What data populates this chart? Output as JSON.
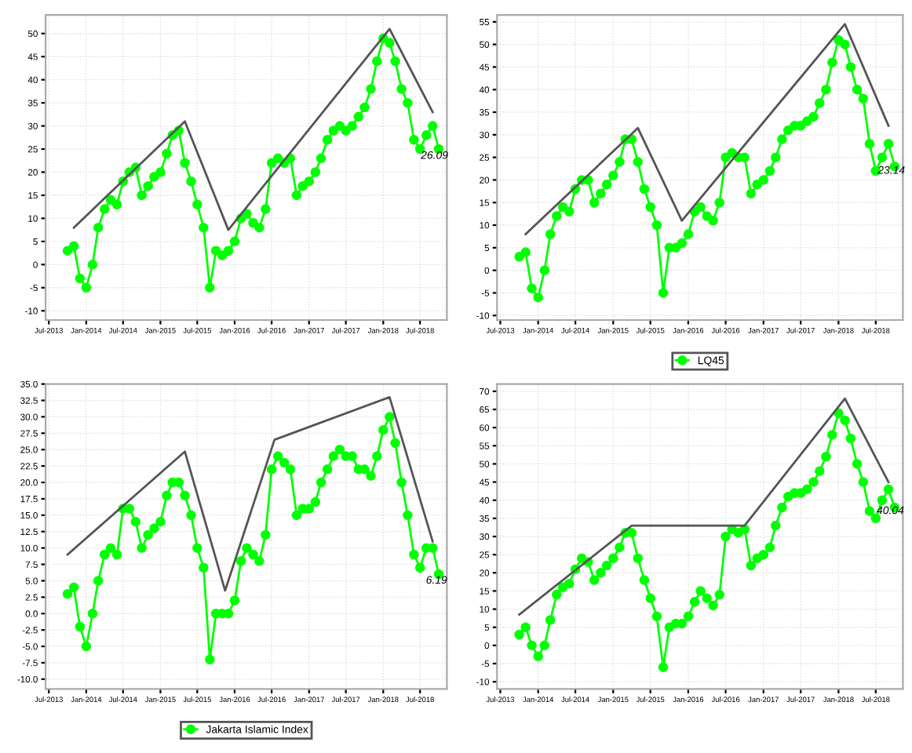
{
  "chart_data": [
    {
      "type": "line",
      "marker": "circle",
      "grid": true,
      "legend": false,
      "xlim": [
        "2013-06-15",
        "2018-11-10"
      ],
      "ylim": [
        -12,
        54
      ],
      "xticks": [
        {
          "value": "2013-07-01",
          "label": "Jul-2013"
        },
        {
          "value": "2014-01-01",
          "label": "Jan-2014"
        },
        {
          "value": "2014-07-01",
          "label": "Jul-2014"
        },
        {
          "value": "2015-01-01",
          "label": "Jan-2015"
        },
        {
          "value": "2015-07-01",
          "label": "Jul-2015"
        },
        {
          "value": "2016-01-01",
          "label": "Jan-2016"
        },
        {
          "value": "2016-07-01",
          "label": "Jul-2016"
        },
        {
          "value": "2017-01-01",
          "label": "Jan-2017"
        },
        {
          "value": "2017-07-01",
          "label": "Jul-2017"
        },
        {
          "value": "2018-01-01",
          "label": "Jan-2018"
        },
        {
          "value": "2018-07-01",
          "label": "Jul-2018"
        }
      ],
      "yticks": [
        -10,
        -5,
        0,
        5,
        10,
        15,
        20,
        25,
        30,
        35,
        40,
        45,
        50
      ],
      "annotations": [
        {
          "text": "26.09",
          "x": "2018-09-10",
          "y": 23.5
        }
      ],
      "series": [
        {
          "color": "#00ff00",
          "x": [
            "2013-10",
            "2013-11",
            "2013-12",
            "2014-01",
            "2014-02",
            "2014-03",
            "2014-04",
            "2014-05",
            "2014-06",
            "2014-07",
            "2014-08",
            "2014-09",
            "2014-10",
            "2014-11",
            "2014-12",
            "2015-01",
            "2015-02",
            "2015-03",
            "2015-04",
            "2015-05",
            "2015-06",
            "2015-07",
            "2015-08",
            "2015-09",
            "2015-10",
            "2015-11",
            "2015-12",
            "2016-01",
            "2016-02",
            "2016-03",
            "2016-04",
            "2016-05",
            "2016-06",
            "2016-07",
            "2016-08",
            "2016-09",
            "2016-10",
            "2016-11",
            "2016-12",
            "2017-01",
            "2017-02",
            "2017-03",
            "2017-04",
            "2017-05",
            "2017-06",
            "2017-07",
            "2017-08",
            "2017-09",
            "2017-10",
            "2017-11",
            "2017-12",
            "2018-01",
            "2018-02",
            "2018-03",
            "2018-04",
            "2018-05",
            "2018-06",
            "2018-07",
            "2018-08",
            "2018-09",
            "2018-10"
          ],
          "values": [
            3,
            4,
            -3,
            -5,
            0,
            8,
            12,
            14,
            13,
            18,
            20,
            21,
            15,
            17,
            19,
            20,
            24,
            28,
            29,
            22,
            18,
            13,
            8,
            -5,
            3,
            2,
            3,
            5,
            10,
            11,
            9,
            8,
            12,
            22,
            23,
            22,
            23,
            15,
            17,
            18,
            20,
            23,
            27,
            29,
            30,
            29,
            30,
            32,
            34,
            38,
            44,
            49,
            48,
            44,
            38,
            35,
            27,
            25,
            28,
            30,
            25
          ]
        },
        {
          "color": "#555555",
          "type": "line",
          "marker": "none",
          "x": [
            "2013-11-01",
            "2015-05-01",
            "2015-12-01",
            "2018-02-01",
            "2018-09-01"
          ],
          "values": [
            8,
            31,
            7.5,
            51,
            33
          ]
        }
      ]
    },
    {
      "type": "line",
      "marker": "circle",
      "grid": true,
      "legend": "bottom",
      "xlim": [
        "2013-06-15",
        "2018-11-10"
      ],
      "ylim": [
        -11,
        56.5
      ],
      "xticks": [
        {
          "value": "2013-07-01",
          "label": "Jul-2013"
        },
        {
          "value": "2014-01-01",
          "label": "Jan-2014"
        },
        {
          "value": "2014-07-01",
          "label": "Jul-2014"
        },
        {
          "value": "2015-01-01",
          "label": "Jan-2015"
        },
        {
          "value": "2015-07-01",
          "label": "Jul-2015"
        },
        {
          "value": "2016-01-01",
          "label": "Jan-2016"
        },
        {
          "value": "2016-07-01",
          "label": "Jul-2016"
        },
        {
          "value": "2017-01-01",
          "label": "Jan-2017"
        },
        {
          "value": "2017-07-01",
          "label": "Jul-2017"
        },
        {
          "value": "2018-01-01",
          "label": "Jan-2018"
        },
        {
          "value": "2018-07-01",
          "label": "Jul-2018"
        }
      ],
      "yticks": [
        -10,
        -5,
        0,
        5,
        10,
        15,
        20,
        25,
        30,
        35,
        40,
        45,
        50,
        55
      ],
      "annotations": [
        {
          "text": "23.14",
          "x": "2018-09-15",
          "y": 22
        }
      ],
      "series": [
        {
          "name": "LQ45",
          "color": "#00ff00",
          "x": [
            "2013-10",
            "2013-11",
            "2013-12",
            "2014-01",
            "2014-02",
            "2014-03",
            "2014-04",
            "2014-05",
            "2014-06",
            "2014-07",
            "2014-08",
            "2014-09",
            "2014-10",
            "2014-11",
            "2014-12",
            "2015-01",
            "2015-02",
            "2015-03",
            "2015-04",
            "2015-05",
            "2015-06",
            "2015-07",
            "2015-08",
            "2015-09",
            "2015-10",
            "2015-11",
            "2015-12",
            "2016-01",
            "2016-02",
            "2016-03",
            "2016-04",
            "2016-05",
            "2016-06",
            "2016-07",
            "2016-08",
            "2016-09",
            "2016-10",
            "2016-11",
            "2016-12",
            "2017-01",
            "2017-02",
            "2017-03",
            "2017-04",
            "2017-05",
            "2017-06",
            "2017-07",
            "2017-08",
            "2017-09",
            "2017-10",
            "2017-11",
            "2017-12",
            "2018-01",
            "2018-02",
            "2018-03",
            "2018-04",
            "2018-05",
            "2018-06",
            "2018-07",
            "2018-08",
            "2018-09",
            "2018-10"
          ],
          "values": [
            3,
            4,
            -4,
            -6,
            0,
            8,
            12,
            14,
            13,
            18,
            20,
            20,
            15,
            17,
            19,
            21,
            24,
            29,
            29,
            24,
            18,
            14,
            10,
            -5,
            5,
            5,
            6,
            8,
            13,
            14,
            12,
            11,
            15,
            25,
            26,
            25,
            25,
            17,
            19,
            20,
            22,
            25,
            29,
            31,
            32,
            32,
            33,
            34,
            37,
            40,
            46,
            51,
            50,
            45,
            40,
            38,
            28,
            22,
            25,
            28,
            23
          ]
        },
        {
          "color": "#555555",
          "type": "line",
          "marker": "none",
          "x": [
            "2013-11-01",
            "2015-05-01",
            "2015-12-01",
            "2018-02-01",
            "2018-09-01"
          ],
          "values": [
            8,
            31.5,
            11,
            54.5,
            32
          ]
        }
      ]
    },
    {
      "type": "line",
      "marker": "circle",
      "grid": true,
      "legend": "bottom",
      "xlim": [
        "2013-06-15",
        "2018-11-10"
      ],
      "ylim": [
        -11.5,
        35
      ],
      "xticks": [
        {
          "value": "2013-07-01",
          "label": "Jul-2013"
        },
        {
          "value": "2014-01-01",
          "label": "Jan-2014"
        },
        {
          "value": "2014-07-01",
          "label": "Jul-2014"
        },
        {
          "value": "2015-01-01",
          "label": "Jan-2015"
        },
        {
          "value": "2015-07-01",
          "label": "Jul-2015"
        },
        {
          "value": "2016-01-01",
          "label": "Jan-2016"
        },
        {
          "value": "2016-07-01",
          "label": "Jul-2016"
        },
        {
          "value": "2017-01-01",
          "label": "Jan-2017"
        },
        {
          "value": "2017-07-01",
          "label": "Jul-2017"
        },
        {
          "value": "2018-01-01",
          "label": "Jan-2018"
        },
        {
          "value": "2018-07-01",
          "label": "Jul-2018"
        }
      ],
      "yticks": [
        {
          "value": -10,
          "label": "-10.0"
        },
        {
          "value": -7.5,
          "label": "-7.5"
        },
        {
          "value": -5,
          "label": "-5.0"
        },
        {
          "value": -2.5,
          "label": "-2.5"
        },
        {
          "value": 0,
          "label": "0.0"
        },
        {
          "value": 2.5,
          "label": "2.5"
        },
        {
          "value": 5,
          "label": "5.0"
        },
        {
          "value": 7.5,
          "label": "7.5"
        },
        {
          "value": 10,
          "label": "10.0"
        },
        {
          "value": 12.5,
          "label": "12.5"
        },
        {
          "value": 15,
          "label": "15.0"
        },
        {
          "value": 17.5,
          "label": "17.5"
        },
        {
          "value": 20,
          "label": "20.0"
        },
        {
          "value": 22.5,
          "label": "22.5"
        },
        {
          "value": 25,
          "label": "25.0"
        },
        {
          "value": 27.5,
          "label": "27.5"
        },
        {
          "value": 30,
          "label": "30.0"
        },
        {
          "value": 32.5,
          "label": "32.5"
        },
        {
          "value": 35,
          "label": "35.0"
        }
      ],
      "annotations": [
        {
          "text": "6.19",
          "x": "2018-09-20",
          "y": 5
        }
      ],
      "series": [
        {
          "name": "Jakarta Islamic Index",
          "color": "#00ff00",
          "x": [
            "2013-10",
            "2013-11",
            "2013-12",
            "2014-01",
            "2014-02",
            "2014-03",
            "2014-04",
            "2014-05",
            "2014-06",
            "2014-07",
            "2014-08",
            "2014-09",
            "2014-10",
            "2014-11",
            "2014-12",
            "2015-01",
            "2015-02",
            "2015-03",
            "2015-04",
            "2015-05",
            "2015-06",
            "2015-07",
            "2015-08",
            "2015-09",
            "2015-10",
            "2015-11",
            "2015-12",
            "2016-01",
            "2016-02",
            "2016-03",
            "2016-04",
            "2016-05",
            "2016-06",
            "2016-07",
            "2016-08",
            "2016-09",
            "2016-10",
            "2016-11",
            "2016-12",
            "2017-01",
            "2017-02",
            "2017-03",
            "2017-04",
            "2017-05",
            "2017-06",
            "2017-07",
            "2017-08",
            "2017-09",
            "2017-10",
            "2017-11",
            "2017-12",
            "2018-01",
            "2018-02",
            "2018-03",
            "2018-04",
            "2018-05",
            "2018-06",
            "2018-07",
            "2018-08",
            "2018-09",
            "2018-10"
          ],
          "values": [
            3,
            4,
            -2,
            -5,
            0,
            5,
            9,
            10,
            9,
            16,
            16,
            14,
            10,
            12,
            13,
            14,
            18,
            20,
            20,
            18,
            15,
            10,
            7,
            -7,
            0,
            0,
            0,
            2,
            8,
            10,
            9,
            8,
            12,
            22,
            24,
            23,
            22,
            15,
            16,
            16,
            17,
            20,
            22,
            24,
            25,
            24,
            24,
            22,
            22,
            21,
            24,
            28,
            30,
            26,
            20,
            15,
            9,
            7,
            10,
            10,
            6
          ]
        },
        {
          "color": "#555555",
          "type": "line",
          "marker": "none",
          "x": [
            "2013-10-01",
            "2015-05-01",
            "2015-11-15",
            "2016-07-15",
            "2018-02-01",
            "2018-09-01"
          ],
          "values": [
            9,
            24.7,
            3.5,
            26.5,
            33,
            11
          ]
        }
      ]
    },
    {
      "type": "line",
      "marker": "circle",
      "grid": true,
      "legend": false,
      "xlim": [
        "2013-06-15",
        "2018-11-10"
      ],
      "ylim": [
        -12,
        72
      ],
      "xticks": [
        {
          "value": "2013-07-01",
          "label": "Jul-2013"
        },
        {
          "value": "2014-01-01",
          "label": "Jan-2014"
        },
        {
          "value": "2014-07-01",
          "label": "Jul-2014"
        },
        {
          "value": "2015-01-01",
          "label": "Jan-2015"
        },
        {
          "value": "2015-07-01",
          "label": "Jul-2015"
        },
        {
          "value": "2016-01-01",
          "label": "Jan-2016"
        },
        {
          "value": "2016-07-01",
          "label": "Jul-2016"
        },
        {
          "value": "2017-01-01",
          "label": "Jan-2017"
        },
        {
          "value": "2017-07-01",
          "label": "Jul-2017"
        },
        {
          "value": "2018-01-01",
          "label": "Jan-2018"
        },
        {
          "value": "2018-07-01",
          "label": "Jul-2018"
        }
      ],
      "yticks": [
        -10,
        -5,
        0,
        5,
        10,
        15,
        20,
        25,
        30,
        35,
        40,
        45,
        50,
        55,
        60,
        65,
        70
      ],
      "annotations": [
        {
          "text": "40.04",
          "x": "2018-09-10",
          "y": 37
        }
      ],
      "series": [
        {
          "color": "#00ff00",
          "x": [
            "2013-10",
            "2013-11",
            "2013-12",
            "2014-01",
            "2014-02",
            "2014-03",
            "2014-04",
            "2014-05",
            "2014-06",
            "2014-07",
            "2014-08",
            "2014-09",
            "2014-10",
            "2014-11",
            "2014-12",
            "2015-01",
            "2015-02",
            "2015-03",
            "2015-04",
            "2015-05",
            "2015-06",
            "2015-07",
            "2015-08",
            "2015-09",
            "2015-10",
            "2015-11",
            "2015-12",
            "2016-01",
            "2016-02",
            "2016-03",
            "2016-04",
            "2016-05",
            "2016-06",
            "2016-07",
            "2016-08",
            "2016-09",
            "2016-10",
            "2016-11",
            "2016-12",
            "2017-01",
            "2017-02",
            "2017-03",
            "2017-04",
            "2017-05",
            "2017-06",
            "2017-07",
            "2017-08",
            "2017-09",
            "2017-10",
            "2017-11",
            "2017-12",
            "2018-01",
            "2018-02",
            "2018-03",
            "2018-04",
            "2018-05",
            "2018-06",
            "2018-07",
            "2018-08",
            "2018-09",
            "2018-10"
          ],
          "values": [
            3,
            5,
            0,
            -3,
            0,
            7,
            14,
            16,
            17,
            21,
            24,
            23,
            18,
            20,
            22,
            24,
            27,
            31,
            31,
            24,
            18,
            13,
            8,
            -6,
            5,
            6,
            6,
            8,
            12,
            15,
            13,
            11,
            14,
            30,
            32,
            31,
            32,
            22,
            24,
            25,
            27,
            33,
            38,
            41,
            42,
            42,
            43,
            45,
            48,
            52,
            58,
            64,
            62,
            57,
            50,
            45,
            37,
            35,
            40,
            43,
            38
          ]
        },
        {
          "color": "#555555",
          "type": "line",
          "marker": "none",
          "x": [
            "2013-10-01",
            "2015-04-01",
            "2016-10-01",
            "2018-02-01",
            "2018-09-01"
          ],
          "values": [
            8.5,
            33,
            33,
            68,
            45
          ]
        }
      ]
    }
  ]
}
